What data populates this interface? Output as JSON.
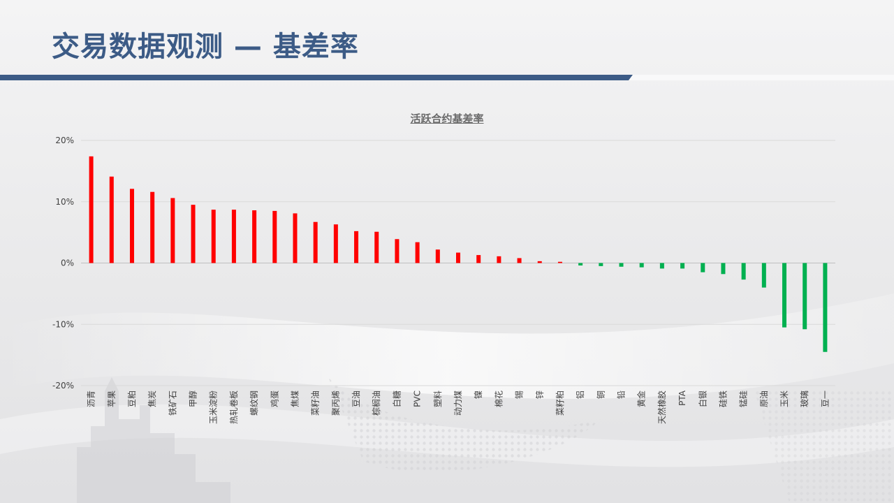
{
  "slide": {
    "title": "交易数据观测 — 基差率"
  },
  "colors": {
    "title_blue": "#3c5b86",
    "positive": "#ff0000",
    "negative": "#00b050",
    "gridline": "#d9d9d9",
    "tick_text": "#404040"
  },
  "chart_data": {
    "type": "bar",
    "title": "活跃合约基差率",
    "xlabel": "",
    "ylabel": "",
    "ylim": [
      -0.2,
      0.2
    ],
    "yticks": [
      0.2,
      0.1,
      0,
      -0.1,
      -0.2
    ],
    "ytick_labels": [
      "20%",
      "10%",
      "0%",
      "-10%",
      "-20%"
    ],
    "grid": true,
    "legend": "none",
    "categories": [
      "沥青",
      "苹果",
      "豆粕",
      "焦炭",
      "铁矿石",
      "甲醇",
      "玉米淀粉",
      "热轧卷板",
      "螺纹钢",
      "鸡蛋",
      "焦煤",
      "菜籽油",
      "聚丙烯",
      "豆油",
      "棕榈油",
      "白糖",
      "PVC",
      "塑料",
      "动力煤",
      "镍",
      "棉花",
      "锡",
      "锌",
      "菜籽粕",
      "铝",
      "铜",
      "铅",
      "黄金",
      "天然橡胶",
      "PTA",
      "白银",
      "硅铁",
      "锰硅",
      "原油",
      "玉米",
      "玻璃",
      "豆一"
    ],
    "values": [
      0.174,
      0.141,
      0.121,
      0.116,
      0.106,
      0.095,
      0.087,
      0.087,
      0.086,
      0.085,
      0.081,
      0.067,
      0.063,
      0.052,
      0.051,
      0.039,
      0.034,
      0.022,
      0.017,
      0.013,
      0.011,
      0.008,
      0.003,
      0.002,
      -0.004,
      -0.005,
      -0.006,
      -0.007,
      -0.009,
      -0.009,
      -0.015,
      -0.018,
      -0.027,
      -0.04,
      -0.105,
      -0.108,
      -0.145
    ]
  }
}
